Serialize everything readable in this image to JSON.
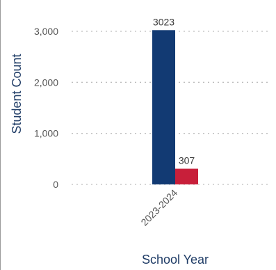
{
  "chart_data": {
    "type": "bar",
    "categories": [
      "2023-2024"
    ],
    "series": [
      {
        "values": [
          3023
        ],
        "color": "#123a73"
      },
      {
        "values": [
          307
        ],
        "color": "#c81f3a"
      }
    ],
    "xlabel": "School Year",
    "ylabel": "Student Count",
    "ylim": [
      0,
      3000
    ],
    "yticks": [
      {
        "value": 0,
        "label": "0"
      },
      {
        "value": 1000,
        "label": "1,000"
      },
      {
        "value": 2000,
        "label": "2,000"
      },
      {
        "value": 3000,
        "label": "3,000"
      }
    ],
    "data_labels": [
      "3023",
      "307"
    ],
    "grid": true,
    "legend": "none"
  }
}
